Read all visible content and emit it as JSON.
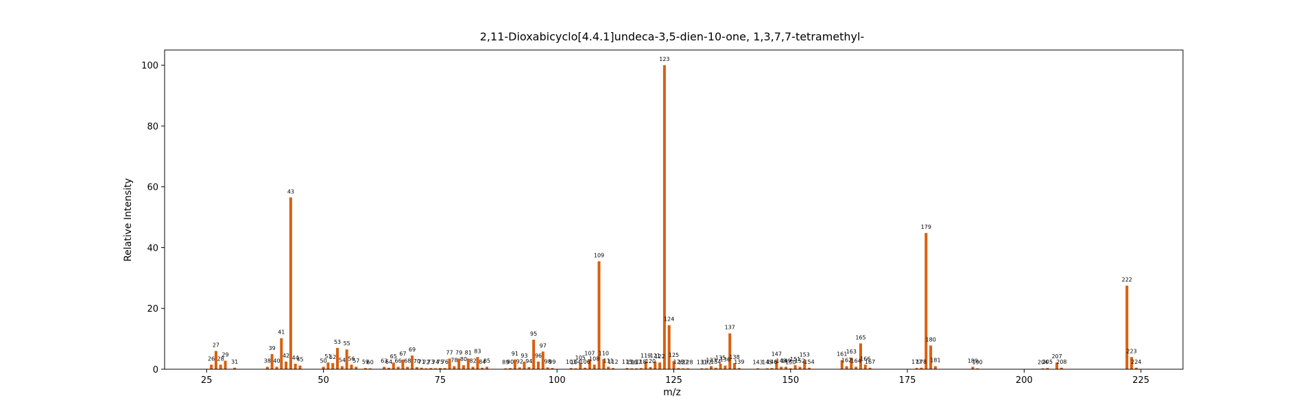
{
  "chart_data": {
    "type": "bar",
    "title": "2,11-Dioxabicyclo[4.4.1]undeca-3,5-dien-10-one, 1,3,7,7-tetramethyl-",
    "xlabel": "m/z",
    "ylabel": "Relative Intensity",
    "xlim": [
      16,
      234
    ],
    "ylim": [
      0,
      105
    ],
    "xticks": [
      25,
      50,
      75,
      100,
      125,
      150,
      175,
      200,
      225
    ],
    "yticks": [
      0,
      20,
      40,
      60,
      80,
      100
    ],
    "grid": false,
    "bar_color": "#d95f0e",
    "peaks": [
      {
        "mz": 26,
        "intensity": 1.5
      },
      {
        "mz": 27,
        "intensity": 6.0
      },
      {
        "mz": 28,
        "intensity": 1.5
      },
      {
        "mz": 29,
        "intensity": 2.8
      },
      {
        "mz": 31,
        "intensity": 0.5
      },
      {
        "mz": 38,
        "intensity": 0.8
      },
      {
        "mz": 39,
        "intensity": 5.0
      },
      {
        "mz": 40,
        "intensity": 0.8
      },
      {
        "mz": 41,
        "intensity": 10.2
      },
      {
        "mz": 42,
        "intensity": 2.5
      },
      {
        "mz": 43,
        "intensity": 56.5
      },
      {
        "mz": 44,
        "intensity": 1.8
      },
      {
        "mz": 45,
        "intensity": 1.2
      },
      {
        "mz": 50,
        "intensity": 0.8
      },
      {
        "mz": 51,
        "intensity": 2.2
      },
      {
        "mz": 52,
        "intensity": 2.0
      },
      {
        "mz": 53,
        "intensity": 7.0
      },
      {
        "mz": 54,
        "intensity": 1.0
      },
      {
        "mz": 55,
        "intensity": 6.5
      },
      {
        "mz": 56,
        "intensity": 1.5
      },
      {
        "mz": 57,
        "intensity": 0.8
      },
      {
        "mz": 59,
        "intensity": 0.4
      },
      {
        "mz": 60,
        "intensity": 0.3
      },
      {
        "mz": 63,
        "intensity": 0.8
      },
      {
        "mz": 64,
        "intensity": 0.5
      },
      {
        "mz": 65,
        "intensity": 2.2
      },
      {
        "mz": 66,
        "intensity": 0.8
      },
      {
        "mz": 67,
        "intensity": 3.2
      },
      {
        "mz": 68,
        "intensity": 0.8
      },
      {
        "mz": 69,
        "intensity": 4.5
      },
      {
        "mz": 70,
        "intensity": 0.7
      },
      {
        "mz": 71,
        "intensity": 0.5
      },
      {
        "mz": 72,
        "intensity": 0.3
      },
      {
        "mz": 73,
        "intensity": 0.4
      },
      {
        "mz": 74,
        "intensity": 0.3
      },
      {
        "mz": 75,
        "intensity": 0.4
      },
      {
        "mz": 76,
        "intensity": 0.4
      },
      {
        "mz": 77,
        "intensity": 3.5
      },
      {
        "mz": 78,
        "intensity": 1.0
      },
      {
        "mz": 79,
        "intensity": 3.5
      },
      {
        "mz": 80,
        "intensity": 1.3
      },
      {
        "mz": 81,
        "intensity": 3.5
      },
      {
        "mz": 82,
        "intensity": 0.8
      },
      {
        "mz": 83,
        "intensity": 4.0
      },
      {
        "mz": 84,
        "intensity": 0.5
      },
      {
        "mz": 85,
        "intensity": 0.8
      },
      {
        "mz": 89,
        "intensity": 0.3
      },
      {
        "mz": 90,
        "intensity": 0.4
      },
      {
        "mz": 91,
        "intensity": 3.2
      },
      {
        "mz": 92,
        "intensity": 0.6
      },
      {
        "mz": 93,
        "intensity": 2.5
      },
      {
        "mz": 94,
        "intensity": 0.7
      },
      {
        "mz": 95,
        "intensity": 9.7
      },
      {
        "mz": 96,
        "intensity": 2.5
      },
      {
        "mz": 97,
        "intensity": 5.8
      },
      {
        "mz": 98,
        "intensity": 0.6
      },
      {
        "mz": 99,
        "intensity": 0.4
      },
      {
        "mz": 103,
        "intensity": 0.4
      },
      {
        "mz": 104,
        "intensity": 0.3
      },
      {
        "mz": 105,
        "intensity": 1.8
      },
      {
        "mz": 106,
        "intensity": 0.5
      },
      {
        "mz": 107,
        "intensity": 3.3
      },
      {
        "mz": 108,
        "intensity": 1.5
      },
      {
        "mz": 109,
        "intensity": 35.5
      },
      {
        "mz": 110,
        "intensity": 3.3
      },
      {
        "mz": 111,
        "intensity": 0.8
      },
      {
        "mz": 112,
        "intensity": 0.4
      },
      {
        "mz": 115,
        "intensity": 0.4
      },
      {
        "mz": 116,
        "intensity": 0.3
      },
      {
        "mz": 117,
        "intensity": 0.3
      },
      {
        "mz": 118,
        "intensity": 0.4
      },
      {
        "mz": 119,
        "intensity": 2.5
      },
      {
        "mz": 120,
        "intensity": 0.7
      },
      {
        "mz": 121,
        "intensity": 2.5
      },
      {
        "mz": 122,
        "intensity": 2.2
      },
      {
        "mz": 123,
        "intensity": 100
      },
      {
        "mz": 124,
        "intensity": 14.5
      },
      {
        "mz": 125,
        "intensity": 2.7
      },
      {
        "mz": 126,
        "intensity": 0.4
      },
      {
        "mz": 127,
        "intensity": 0.3
      },
      {
        "mz": 128,
        "intensity": 0.3
      },
      {
        "mz": 131,
        "intensity": 0.3
      },
      {
        "mz": 132,
        "intensity": 0.3
      },
      {
        "mz": 133,
        "intensity": 1.0
      },
      {
        "mz": 135,
        "intensity": 1.8
      },
      {
        "mz": 136,
        "intensity": 1.2
      },
      {
        "mz": 134,
        "intensity": 0.5
      },
      {
        "mz": 137,
        "intensity": 11.8
      },
      {
        "mz": 138,
        "intensity": 2.0
      },
      {
        "mz": 139,
        "intensity": 0.4
      },
      {
        "mz": 143,
        "intensity": 0.3
      },
      {
        "mz": 145,
        "intensity": 0.3
      },
      {
        "mz": 146,
        "intensity": 0.4
      },
      {
        "mz": 147,
        "intensity": 3.0
      },
      {
        "mz": 148,
        "intensity": 0.8
      },
      {
        "mz": 149,
        "intensity": 0.8
      },
      {
        "mz": 150,
        "intensity": 0.3
      },
      {
        "mz": 151,
        "intensity": 1.3
      },
      {
        "mz": 152,
        "intensity": 0.8
      },
      {
        "mz": 153,
        "intensity": 2.8
      },
      {
        "mz": 154,
        "intensity": 0.5
      },
      {
        "mz": 161,
        "intensity": 3.0
      },
      {
        "mz": 162,
        "intensity": 1.0
      },
      {
        "mz": 163,
        "intensity": 3.8
      },
      {
        "mz": 164,
        "intensity": 0.8
      },
      {
        "mz": 165,
        "intensity": 8.5
      },
      {
        "mz": 166,
        "intensity": 1.5
      },
      {
        "mz": 167,
        "intensity": 0.5
      },
      {
        "mz": 177,
        "intensity": 0.4
      },
      {
        "mz": 178,
        "intensity": 0.5
      },
      {
        "mz": 179,
        "intensity": 44.8
      },
      {
        "mz": 180,
        "intensity": 7.8
      },
      {
        "mz": 181,
        "intensity": 1.0
      },
      {
        "mz": 189,
        "intensity": 0.8
      },
      {
        "mz": 190,
        "intensity": 0.3
      },
      {
        "mz": 204,
        "intensity": 0.3
      },
      {
        "mz": 205,
        "intensity": 0.4
      },
      {
        "mz": 207,
        "intensity": 2.2
      },
      {
        "mz": 208,
        "intensity": 0.5
      },
      {
        "mz": 222,
        "intensity": 27.5
      },
      {
        "mz": 223,
        "intensity": 4.0
      },
      {
        "mz": 224,
        "intensity": 0.5
      }
    ]
  }
}
